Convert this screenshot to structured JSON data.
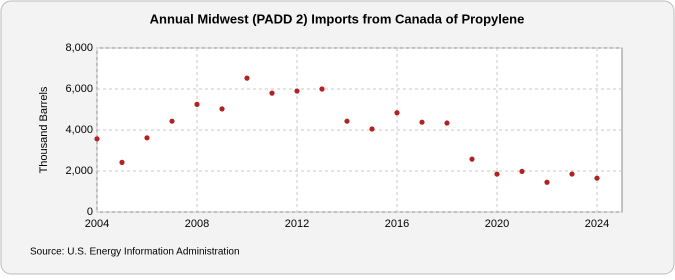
{
  "chart_data": {
    "type": "scatter",
    "title": "Annual Midwest (PADD 2) Imports from Canada of Propylene",
    "y_label": "Thousand Barrels",
    "source": "Source: U.S. Energy Information Administration",
    "x": [
      2004,
      2005,
      2006,
      2007,
      2008,
      2009,
      2010,
      2011,
      2012,
      2013,
      2014,
      2015,
      2016,
      2017,
      2018,
      2019,
      2020,
      2021,
      2022,
      2023,
      2024
    ],
    "values": [
      3570,
      2420,
      3620,
      4430,
      5250,
      5030,
      6530,
      5800,
      5900,
      6000,
      4430,
      4050,
      4840,
      4380,
      4340,
      2580,
      1850,
      1980,
      1450,
      1850,
      1650
    ],
    "color": "#b22222",
    "xlim": [
      2004,
      2025
    ],
    "xticks": [
      2004,
      2008,
      2012,
      2016,
      2020,
      2024
    ],
    "ylim": [
      0,
      8000
    ],
    "yticks": [
      0,
      {
        "value": 2000,
        "label": "2,000"
      },
      {
        "value": 4000,
        "label": "4,000"
      },
      {
        "value": 6000,
        "label": "6,000"
      },
      {
        "value": 8000,
        "label": "8,000"
      }
    ],
    "grid": true
  }
}
